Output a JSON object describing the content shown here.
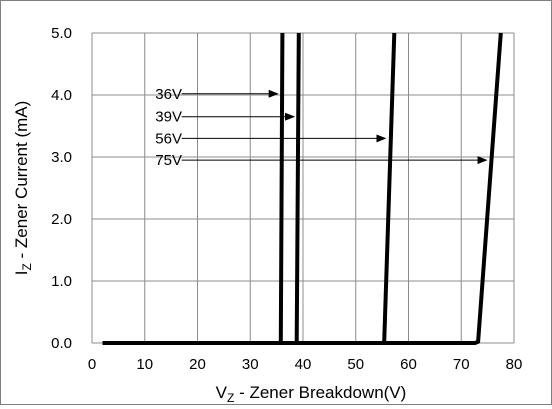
{
  "chart_data": {
    "type": "line",
    "xlabel": {
      "main": "V",
      "sub": "Z",
      "rest": " - Zener Breakdown(V)"
    },
    "ylabel": {
      "main": "I",
      "sub": "Z",
      "rest": " - Zener Current (mA)"
    },
    "xlim": [
      0,
      80
    ],
    "ylim": [
      0,
      5
    ],
    "xticks": [
      0,
      10,
      20,
      30,
      40,
      50,
      60,
      70,
      80
    ],
    "yticks": [
      0,
      1,
      2,
      3,
      4,
      5
    ],
    "xtick_labels": [
      "0",
      "10",
      "20",
      "30",
      "40",
      "50",
      "60",
      "70",
      "80"
    ],
    "ytick_labels": [
      "0.0",
      "1.0",
      "2.0",
      "3.0",
      "4.0",
      "5.0"
    ],
    "grid": true,
    "series": [
      {
        "name": "36V",
        "x": [
          2,
          35.6,
          35.8,
          36.1
        ],
        "y": [
          0,
          0,
          0.02,
          5.0
        ]
      },
      {
        "name": "39V",
        "x": [
          2,
          38.6,
          38.8,
          39.2
        ],
        "y": [
          0,
          0,
          0.02,
          5.0
        ]
      },
      {
        "name": "56V",
        "x": [
          2,
          55.2,
          55.4,
          57.3
        ],
        "y": [
          0,
          0,
          0.02,
          5.0
        ]
      },
      {
        "name": "75V",
        "x": [
          2,
          72.6,
          73.2,
          77.5
        ],
        "y": [
          0,
          0,
          0.02,
          5.0
        ]
      }
    ],
    "annotations": [
      {
        "label": "36V",
        "text_x": 12,
        "arrow_from": 17,
        "arrow_to": 35.2,
        "y": 4.02
      },
      {
        "label": "39V",
        "text_x": 12,
        "arrow_from": 17,
        "arrow_to": 38.3,
        "y": 3.65
      },
      {
        "label": "56V",
        "text_x": 12,
        "arrow_from": 17,
        "arrow_to": 55.6,
        "y": 3.3
      },
      {
        "label": "75V",
        "text_x": 12,
        "arrow_from": 17,
        "arrow_to": 74.8,
        "y": 2.95
      }
    ]
  }
}
